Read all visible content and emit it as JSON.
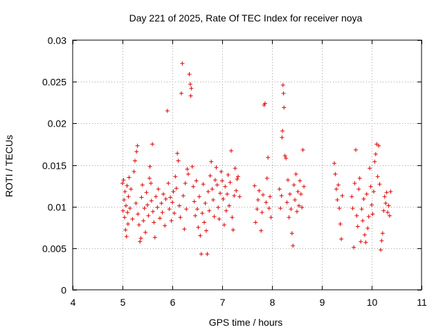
{
  "chart_data": {
    "type": "scatter",
    "title": "Day 221 of 2025, Rate Of TEC Index for receiver noya",
    "xlabel": "GPS time / hours",
    "ylabel": "ROTI / TECUs",
    "xlim": [
      4,
      11
    ],
    "ylim": [
      0,
      0.03
    ],
    "x_ticks": [
      4,
      5,
      6,
      7,
      8,
      9,
      10,
      11
    ],
    "x_tick_labels": [
      "4",
      "5",
      "6",
      "7",
      "8",
      "9",
      "10",
      "11"
    ],
    "y_ticks": [
      0,
      0.005,
      0.01,
      0.015,
      0.02,
      0.025,
      0.03
    ],
    "y_tick_labels": [
      "0",
      "0.005",
      "0.01",
      "0.015",
      "0.02",
      "0.025",
      "0.03"
    ],
    "grid": true,
    "marker": "+",
    "marker_color": "#e00000",
    "series": [
      {
        "name": "ROTI",
        "points": [
          [
            5.0,
            0.0128
          ],
          [
            5.01,
            0.0095
          ],
          [
            5.02,
            0.0132
          ],
          [
            5.03,
            0.0108
          ],
          [
            5.04,
            0.0087
          ],
          [
            5.05,
            0.0118
          ],
          [
            5.06,
            0.0072
          ],
          [
            5.07,
            0.0101
          ],
          [
            5.08,
            0.0064
          ],
          [
            5.09,
            0.0125
          ],
          [
            5.1,
            0.0093
          ],
          [
            5.11,
            0.0079
          ],
          [
            5.12,
            0.0112
          ],
          [
            5.13,
            0.0135
          ],
          [
            5.15,
            0.0098
          ],
          [
            5.17,
            0.0121
          ],
          [
            5.2,
            0.0085
          ],
          [
            5.23,
            0.0142
          ],
          [
            5.25,
            0.0155
          ],
          [
            5.27,
            0.0104
          ],
          [
            5.28,
            0.0166
          ],
          [
            5.3,
            0.0173
          ],
          [
            5.31,
            0.0091
          ],
          [
            5.33,
            0.0078
          ],
          [
            5.35,
            0.0058
          ],
          [
            5.37,
            0.0062
          ],
          [
            5.38,
            0.0111
          ],
          [
            5.4,
            0.0126
          ],
          [
            5.42,
            0.0083
          ],
          [
            5.44,
            0.0098
          ],
          [
            5.46,
            0.0069
          ],
          [
            5.48,
            0.0117
          ],
          [
            5.5,
            0.0102
          ],
          [
            5.52,
            0.0089
          ],
          [
            5.54,
            0.0134
          ],
          [
            5.55,
            0.0148
          ],
          [
            5.57,
            0.0128
          ],
          [
            5.58,
            0.0107
          ],
          [
            5.6,
            0.0175
          ],
          [
            5.61,
            0.0094
          ],
          [
            5.63,
            0.0081
          ],
          [
            5.65,
            0.0063
          ],
          [
            5.67,
            0.0112
          ],
          [
            5.7,
            0.0099
          ],
          [
            5.72,
            0.0121
          ],
          [
            5.75,
            0.0086
          ],
          [
            5.78,
            0.0104
          ],
          [
            5.8,
            0.0093
          ],
          [
            5.82,
            0.0115
          ],
          [
            5.85,
            0.0077
          ],
          [
            5.87,
            0.0109
          ],
          [
            5.9,
            0.0215
          ],
          [
            5.92,
            0.0128
          ],
          [
            5.94,
            0.0097
          ],
          [
            5.96,
            0.0111
          ],
          [
            5.98,
            0.0083
          ],
          [
            6.0,
            0.0105
          ],
          [
            6.02,
            0.0118
          ],
          [
            6.04,
            0.0092
          ],
          [
            6.06,
            0.0136
          ],
          [
            6.08,
            0.0122
          ],
          [
            6.1,
            0.0164
          ],
          [
            6.12,
            0.0155
          ],
          [
            6.14,
            0.0101
          ],
          [
            6.16,
            0.0087
          ],
          [
            6.18,
            0.0236
          ],
          [
            6.2,
            0.0272
          ],
          [
            6.22,
            0.0113
          ],
          [
            6.24,
            0.0073
          ],
          [
            6.26,
            0.0128
          ],
          [
            6.28,
            0.0097
          ],
          [
            6.3,
            0.0145
          ],
          [
            6.32,
            0.0139
          ],
          [
            6.34,
            0.0259
          ],
          [
            6.36,
            0.0247
          ],
          [
            6.37,
            0.0233
          ],
          [
            6.38,
            0.0242
          ],
          [
            6.4,
            0.0148
          ],
          [
            6.42,
            0.0124
          ],
          [
            6.44,
            0.0106
          ],
          [
            6.46,
            0.0089
          ],
          [
            6.48,
            0.0131
          ],
          [
            6.5,
            0.0097
          ],
          [
            6.52,
            0.0075
          ],
          [
            6.54,
            0.0112
          ],
          [
            6.56,
            0.0065
          ],
          [
            6.58,
            0.0043
          ],
          [
            6.6,
            0.0092
          ],
          [
            6.62,
            0.0127
          ],
          [
            6.64,
            0.0081
          ],
          [
            6.66,
            0.0104
          ],
          [
            6.68,
            0.0071
          ],
          [
            6.7,
            0.0043
          ],
          [
            6.72,
            0.0118
          ],
          [
            6.74,
            0.0095
          ],
          [
            6.76,
            0.0137
          ],
          [
            6.78,
            0.0154
          ],
          [
            6.8,
            0.0121
          ],
          [
            6.82,
            0.0108
          ],
          [
            6.84,
            0.0088
          ],
          [
            6.86,
            0.0132
          ],
          [
            6.88,
            0.0147
          ],
          [
            6.9,
            0.0126
          ],
          [
            6.92,
            0.0099
          ],
          [
            6.94,
            0.0085
          ],
          [
            6.96,
            0.0116
          ],
          [
            6.98,
            0.0142
          ],
          [
            7.0,
            0.0131
          ],
          [
            7.02,
            0.0109
          ],
          [
            7.04,
            0.0078
          ],
          [
            7.06,
            0.0124
          ],
          [
            7.08,
            0.0095
          ],
          [
            7.1,
            0.0115
          ],
          [
            7.12,
            0.0138
          ],
          [
            7.14,
            0.0101
          ],
          [
            7.16,
            0.0129
          ],
          [
            7.18,
            0.0167
          ],
          [
            7.2,
            0.0087
          ],
          [
            7.22,
            0.0072
          ],
          [
            7.24,
            0.0113
          ],
          [
            7.26,
            0.0146
          ],
          [
            7.28,
            0.0119
          ],
          [
            7.3,
            0.0133
          ],
          [
            7.32,
            0.0136
          ],
          [
            7.35,
            0.0112
          ],
          [
            7.65,
            0.0125
          ],
          [
            7.67,
            0.0081
          ],
          [
            7.7,
            0.0097
          ],
          [
            7.72,
            0.0108
          ],
          [
            7.74,
            0.0119
          ],
          [
            7.78,
            0.0071
          ],
          [
            7.8,
            0.0093
          ],
          [
            7.82,
            0.0114
          ],
          [
            7.84,
            0.0222
          ],
          [
            7.86,
            0.0224
          ],
          [
            7.88,
            0.0105
          ],
          [
            7.9,
            0.0134
          ],
          [
            7.92,
            0.0159
          ],
          [
            7.94,
            0.0098
          ],
          [
            7.96,
            0.0112
          ],
          [
            7.98,
            0.0087
          ],
          [
            8.15,
            0.0121
          ],
          [
            8.17,
            0.0098
          ],
          [
            8.19,
            0.0113
          ],
          [
            8.2,
            0.0183
          ],
          [
            8.21,
            0.0191
          ],
          [
            8.22,
            0.0246
          ],
          [
            8.23,
            0.0236
          ],
          [
            8.24,
            0.0219
          ],
          [
            8.26,
            0.0161
          ],
          [
            8.28,
            0.0158
          ],
          [
            8.3,
            0.0105
          ],
          [
            8.32,
            0.0132
          ],
          [
            8.34,
            0.0087
          ],
          [
            8.36,
            0.0115
          ],
          [
            8.38,
            0.0097
          ],
          [
            8.4,
            0.0068
          ],
          [
            8.42,
            0.0053
          ],
          [
            8.44,
            0.0126
          ],
          [
            8.46,
            0.0108
          ],
          [
            8.48,
            0.0139
          ],
          [
            8.5,
            0.0094
          ],
          [
            8.52,
            0.0118
          ],
          [
            8.54,
            0.0101
          ],
          [
            8.56,
            0.0131
          ],
          [
            8.58,
            0.0115
          ],
          [
            8.6,
            0.0099
          ],
          [
            8.62,
            0.0168
          ],
          [
            8.64,
            0.0124
          ],
          [
            9.25,
            0.0152
          ],
          [
            9.27,
            0.0139
          ],
          [
            9.29,
            0.0121
          ],
          [
            9.31,
            0.0108
          ],
          [
            9.33,
            0.0126
          ],
          [
            9.35,
            0.0098
          ],
          [
            9.37,
            0.0079
          ],
          [
            9.39,
            0.0061
          ],
          [
            9.41,
            0.0113
          ],
          [
            9.6,
            0.0112
          ],
          [
            9.62,
            0.0098
          ],
          [
            9.64,
            0.0051
          ],
          [
            9.66,
            0.0128
          ],
          [
            9.68,
            0.0168
          ],
          [
            9.7,
            0.0089
          ],
          [
            9.72,
            0.0076
          ],
          [
            9.74,
            0.0121
          ],
          [
            9.76,
            0.0134
          ],
          [
            9.78,
            0.0058
          ],
          [
            9.8,
            0.0097
          ],
          [
            9.82,
            0.0083
          ],
          [
            9.84,
            0.0109
          ],
          [
            9.86,
            0.0066
          ],
          [
            9.88,
            0.0057
          ],
          [
            9.9,
            0.0115
          ],
          [
            9.92,
            0.0074
          ],
          [
            9.94,
            0.0088
          ],
          [
            9.96,
            0.0146
          ],
          [
            9.98,
            0.0124
          ],
          [
            10.0,
            0.0102
          ],
          [
            10.02,
            0.0091
          ],
          [
            10.04,
            0.0118
          ],
          [
            10.06,
            0.0154
          ],
          [
            10.08,
            0.0163
          ],
          [
            10.1,
            0.0175
          ],
          [
            10.12,
            0.0136
          ],
          [
            10.14,
            0.0173
          ],
          [
            10.16,
            0.0127
          ],
          [
            10.18,
            0.0048
          ],
          [
            10.2,
            0.0059
          ],
          [
            10.22,
            0.0068
          ],
          [
            10.24,
            0.0095
          ],
          [
            10.26,
            0.0112
          ],
          [
            10.28,
            0.0104
          ],
          [
            10.3,
            0.0117
          ],
          [
            10.32,
            0.0093
          ],
          [
            10.34,
            0.0101
          ],
          [
            10.36,
            0.0089
          ],
          [
            10.38,
            0.0118
          ]
        ]
      }
    ]
  }
}
